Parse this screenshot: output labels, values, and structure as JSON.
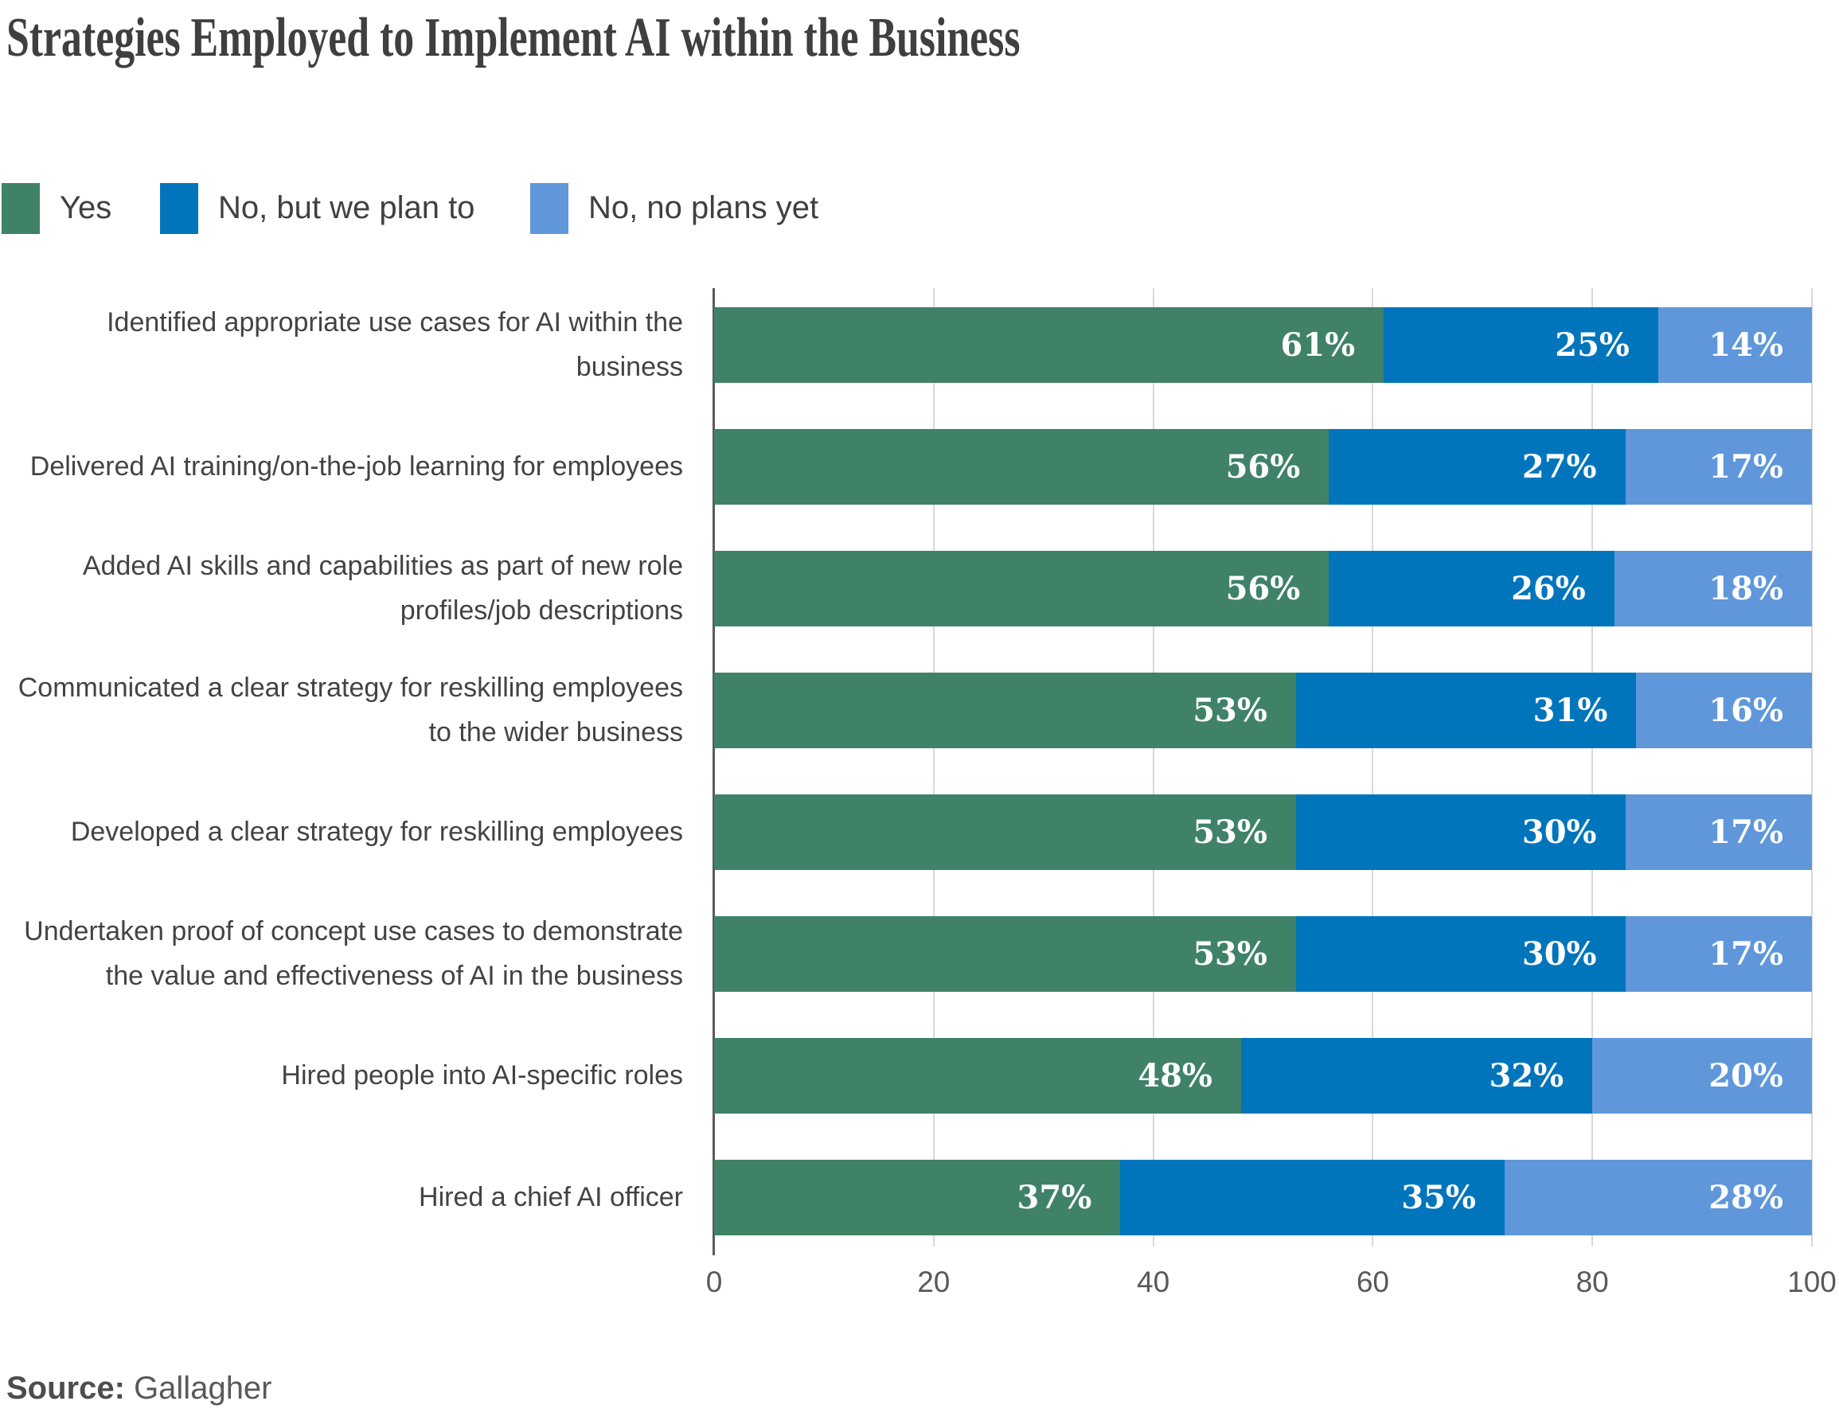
{
  "title": "Strategies Employed to Implement AI within the Business",
  "legend": {
    "items": [
      {
        "label": "Yes",
        "color": "#3f8267"
      },
      {
        "label": "No, but we plan to",
        "color": "#0075bc"
      },
      {
        "label": "No, no plans yet",
        "color": "#5f97da"
      }
    ]
  },
  "chart_data": {
    "type": "bar",
    "stacked": true,
    "orientation": "horizontal",
    "title": "Strategies Employed to Implement AI within the Business",
    "categories": [
      "Identified appropriate use cases for AI within the business",
      "Delivered AI training/on-the-job learning for employees",
      "Added AI skills and capabilities as part of new role profiles/job descriptions",
      "Communicated a clear strategy for reskilling employees to the wider business",
      "Developed a clear strategy for reskilling employees",
      "Undertaken proof of concept use cases to demonstrate the value and effectiveness of AI in the business",
      "Hired people into AI-specific roles",
      "Hired a chief AI officer"
    ],
    "series": [
      {
        "name": "Yes",
        "color": "#3f8267",
        "values": [
          61,
          56,
          56,
          53,
          53,
          53,
          48,
          37
        ]
      },
      {
        "name": "No, but we plan to",
        "color": "#0075bc",
        "values": [
          25,
          27,
          26,
          31,
          30,
          30,
          32,
          35
        ]
      },
      {
        "name": "No, no plans yet",
        "color": "#5f97da",
        "values": [
          14,
          17,
          18,
          16,
          17,
          17,
          20,
          28
        ]
      }
    ],
    "value_suffix": "%",
    "xlabel": "",
    "ylabel": "",
    "xlim": [
      0,
      100
    ],
    "x_ticks": [
      "0",
      "20",
      "40",
      "60",
      "80",
      "100"
    ],
    "grid": "vertical",
    "legend_position": "top-left"
  },
  "x_axis": {
    "ticks": [
      "0",
      "20",
      "40",
      "60",
      "80",
      "100"
    ]
  },
  "source": {
    "label": "Source:",
    "value": "Gallagher"
  },
  "colors": {
    "yes": "#3f8267",
    "no_but_we_plan_to": "#0075bc",
    "no_no_plans_yet": "#5f97da",
    "gridline": "#d9d9d9",
    "axis_line": "#5a5a5a",
    "title_text": "#3f3f3f",
    "category_text": "#434343",
    "tick_text": "#595959",
    "value_text": "#ffffff"
  }
}
